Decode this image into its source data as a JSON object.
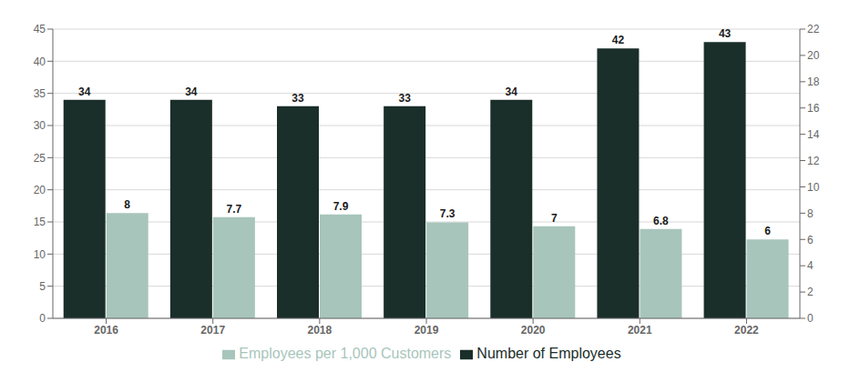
{
  "chart_data": {
    "type": "bar",
    "categories": [
      "2016",
      "2017",
      "2018",
      "2019",
      "2020",
      "2021",
      "2022"
    ],
    "series": [
      {
        "name": "Number of Employees",
        "color": "#1a2e2a",
        "values": [
          34,
          34,
          33,
          33,
          34,
          42,
          43
        ]
      },
      {
        "name": "Employees per 1,000 Customers",
        "color": "#a8c5bb",
        "values": [
          8.0,
          7.7,
          7.9,
          7.3,
          7.0,
          6.8,
          6.0
        ],
        "axis": "y2"
      }
    ],
    "ylim": [
      0,
      45
    ],
    "yticks": [
      0,
      5,
      10,
      15,
      20,
      25,
      30,
      35,
      40,
      45
    ],
    "y2lim": [
      0,
      22
    ],
    "y2ticks": [
      0,
      2,
      4,
      6,
      8,
      10,
      12,
      14,
      16,
      18,
      20,
      22
    ],
    "grid": true,
    "legend": "bottom",
    "data_labels": true
  }
}
